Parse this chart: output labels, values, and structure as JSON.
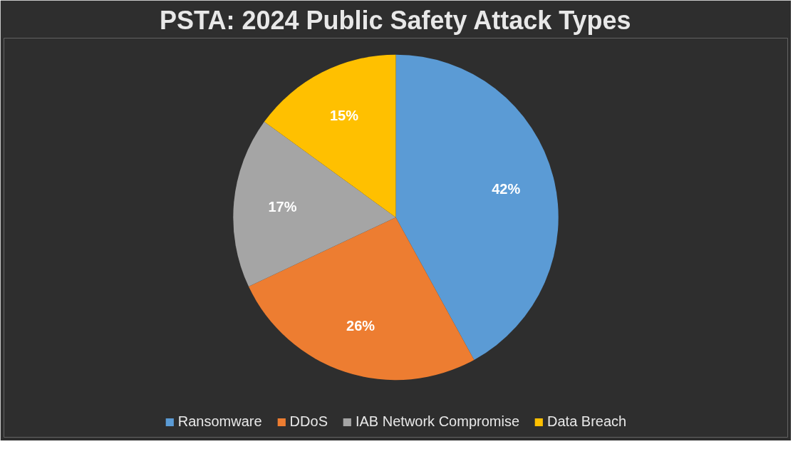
{
  "chart_data": {
    "type": "pie",
    "title": "PSTA: 2024 Public Safety Attack Types",
    "categories": [
      "Ransomware",
      "DDoS",
      "IAB Network Compromise",
      "Data Breach"
    ],
    "values": [
      42,
      26,
      17,
      15
    ],
    "colors": [
      "#5b9bd5",
      "#ed7d31",
      "#a5a5a5",
      "#ffc000"
    ],
    "value_labels": [
      "42%",
      "26%",
      "17%",
      "15%"
    ],
    "legend": "bottom"
  }
}
